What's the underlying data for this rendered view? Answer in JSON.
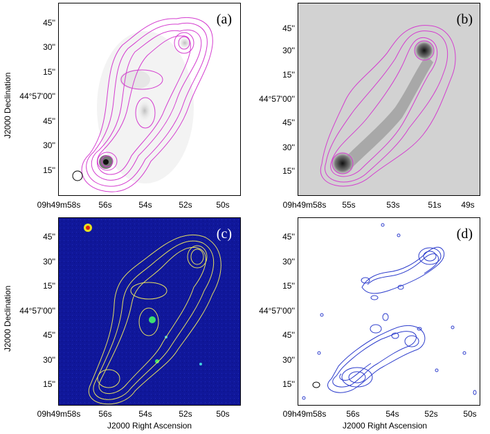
{
  "panels": [
    {
      "label": "(a)",
      "ylabel": "J2000 Declination",
      "xlabel": "",
      "dec_ticks": [
        "45''",
        "30''",
        "15''",
        "44°57'00''",
        "45''",
        "30''",
        "15''"
      ],
      "ra_ticks": [
        "09h49m58s",
        "56s",
        "54s",
        "52s",
        "50s"
      ],
      "contour_color": "#d43ccf",
      "background": "white"
    },
    {
      "label": "(b)",
      "ylabel": "",
      "xlabel": "",
      "dec_ticks": [
        "45''",
        "30''",
        "15''",
        "44°57'00''",
        "45''",
        "30''",
        "15''"
      ],
      "ra_ticks": [
        "09h49m58s",
        "55s",
        "53s",
        "51s",
        "49s"
      ],
      "contour_color": "#d43ccf",
      "background": "grey"
    },
    {
      "label": "(c)",
      "ylabel": "J2000 Declination",
      "xlabel": "J2000 Right Ascension",
      "dec_ticks": [
        "45''",
        "30''",
        "15''",
        "44°57'00''",
        "45''",
        "30''",
        "15''"
      ],
      "ra_ticks": [
        "09h49m58s",
        "56s",
        "54s",
        "52s",
        "50s"
      ],
      "contour_color": "#e6e060",
      "background": "blue"
    },
    {
      "label": "(d)",
      "ylabel": "",
      "xlabel": "J2000 Right Ascension",
      "dec_ticks": [
        "45''",
        "30''",
        "15''",
        "44°57'00''",
        "45''",
        "30''",
        "15''"
      ],
      "ra_ticks": [
        "09h49m58s",
        "56s",
        "54s",
        "52s",
        "50s"
      ],
      "contour_color": "#2c3ccc",
      "background": "white"
    }
  ]
}
